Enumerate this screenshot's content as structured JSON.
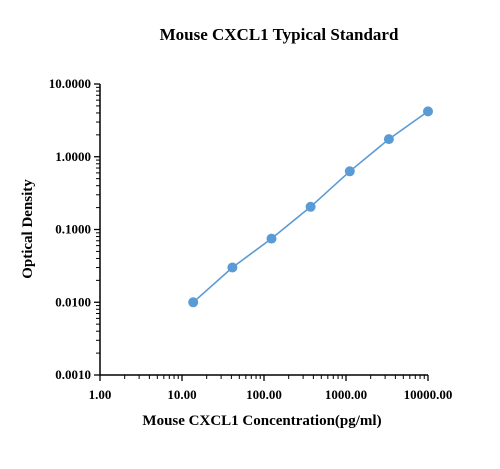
{
  "chart_data": {
    "type": "line",
    "title": "Mouse CXCL1 Typical Standard",
    "xlabel": "Mouse CXCL1 Concentration(pg/ml)",
    "ylabel": "Optical Density",
    "x_scale": "log",
    "y_scale": "log",
    "xlim": [
      1,
      10000
    ],
    "ylim": [
      0.001,
      10
    ],
    "x_ticks": [
      1,
      10,
      100,
      1000,
      10000
    ],
    "x_tick_labels": [
      "1.00",
      "10.00",
      "100.00",
      "1000.00",
      "10000.00"
    ],
    "y_ticks": [
      0.001,
      0.01,
      0.1,
      1,
      10
    ],
    "y_tick_labels": [
      "0.0010",
      "0.0100",
      "0.1000",
      "1.0000",
      "10.0000"
    ],
    "grid": false,
    "colors": {
      "series": "#5b9bd5"
    },
    "series": [
      {
        "x": [
          13.7,
          41.2,
          123.5,
          370.4,
          1111.1,
          3333.3,
          10000
        ],
        "y": [
          0.01,
          0.03,
          0.075,
          0.205,
          0.63,
          1.75,
          4.2
        ]
      }
    ]
  }
}
